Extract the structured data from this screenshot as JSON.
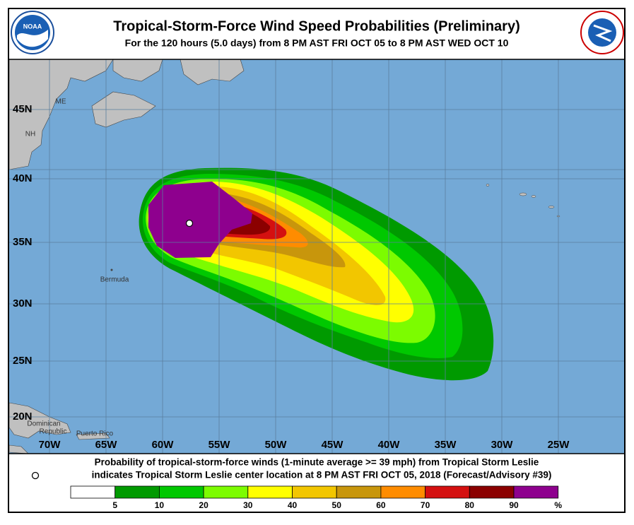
{
  "header": {
    "title": "Tropical-Storm-Force Wind Speed Probabilities (Preliminary)",
    "subtitle": "For the 120 hours (5.0 days) from 8 PM AST FRI OCT 05 to 8 PM AST WED OCT 10"
  },
  "lat_labels": [
    "45N",
    "40N",
    "35N",
    "30N",
    "25N",
    "20N"
  ],
  "lon_labels": [
    "70W",
    "65W",
    "60W",
    "55W",
    "50W",
    "45W",
    "40W",
    "35W",
    "30W",
    "25W"
  ],
  "places": [
    "ME",
    "NH",
    "Bermuda",
    "Dominican",
    "Republic",
    "Puerto Rico"
  ],
  "caption": [
    "Probability of tropical-storm-force winds (1-minute average >= 39 mph) from Tropical Storm Leslie",
    "indicates Tropical Storm Leslie center location at 8 PM AST FRI OCT 05, 2018 (Forecast/Advisory #39)"
  ],
  "legend": {
    "labels": [
      5,
      10,
      20,
      30,
      40,
      50,
      60,
      70,
      80,
      90,
      "%"
    ],
    "colors": [
      "#ffffff",
      "#009a00",
      "#00c800",
      "#7cfc00",
      "#ffff00",
      "#f2c600",
      "#c8960c",
      "#ff8c00",
      "#d41010",
      "#8b0000",
      "#8e008e"
    ]
  }
}
